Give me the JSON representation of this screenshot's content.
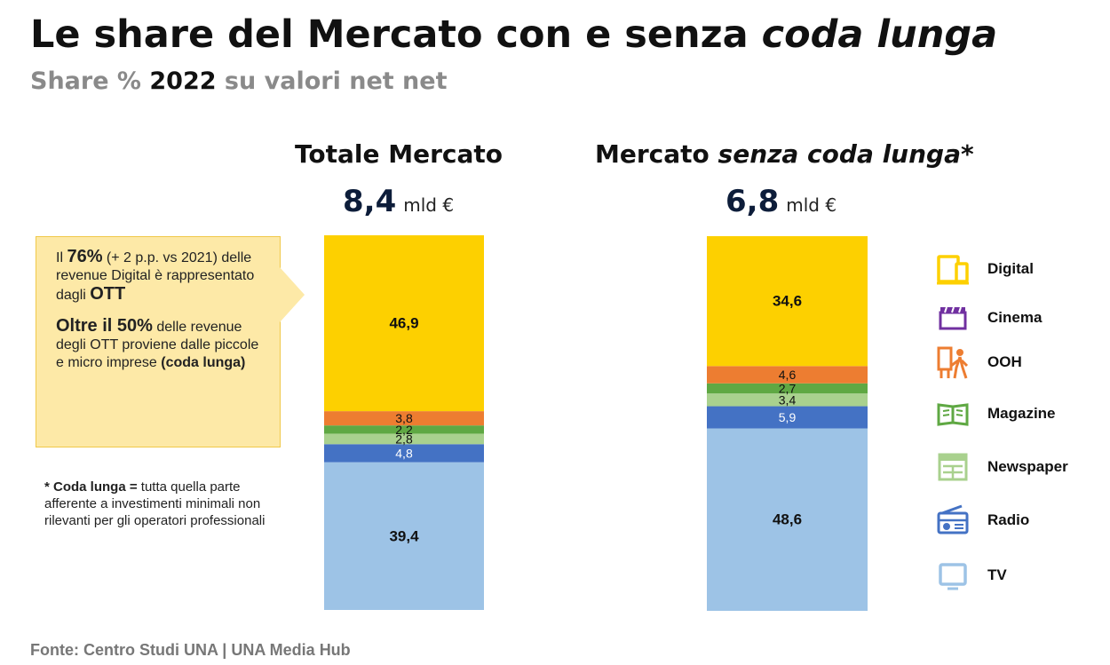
{
  "header": {
    "title_main": "Le share del Mercato con e senza ",
    "title_italic": "coda lunga",
    "subtitle_pre": "Share % ",
    "subtitle_year": "2022",
    "subtitle_post": " su valori net net"
  },
  "colors": {
    "Digital": "#fdd000",
    "Cinema": "#7030a0",
    "OOH": "#ed7d31",
    "Magazine": "#5fa843",
    "Newspaper": "#a9d18e",
    "Radio": "#4472c4",
    "TV": "#9dc3e6"
  },
  "callout": {
    "p1_a": "Il ",
    "p1_b": "76%",
    "p1_c": " (+ 2 p.p. vs 2021) delle revenue Digital è rappresentato dagli ",
    "p1_d": "OTT",
    "p2_a": "Oltre il 50%",
    "p2_b": " delle revenue degli OTT proviene dalle piccole e micro imprese ",
    "p2_c": "(coda lunga)"
  },
  "footnote": {
    "label": "* Coda lunga =",
    "text": " tutta quella parte afferente a investimenti minimali non rilevanti per gli operatori professionali"
  },
  "source": "Fonte: Centro Studi UNA | UNA Media Hub",
  "chart_data": [
    {
      "type": "bar",
      "stacked": true,
      "title": "Totale Mercato",
      "total_value": "8,4",
      "total_unit": "mld €",
      "ylim": [
        0,
        100
      ],
      "series": [
        {
          "name": "TV",
          "value": 39.4,
          "label": "39,4"
        },
        {
          "name": "Radio",
          "value": 4.8,
          "label": "4,8"
        },
        {
          "name": "Newspaper",
          "value": 2.8,
          "label": "2,8"
        },
        {
          "name": "Magazine",
          "value": 2.2,
          "label": "2,2"
        },
        {
          "name": "OOH",
          "value": 3.8,
          "label": "3,8"
        },
        {
          "name": "Digital",
          "value": 46.9,
          "label": "46,9"
        }
      ]
    },
    {
      "type": "bar",
      "stacked": true,
      "title_main": "Mercato ",
      "title_italic": "senza coda lunga*",
      "total_value": "6,8",
      "total_unit": "mld €",
      "ylim": [
        0,
        100
      ],
      "series": [
        {
          "name": "TV",
          "value": 48.6,
          "label": "48,6"
        },
        {
          "name": "Radio",
          "value": 5.9,
          "label": "5,9"
        },
        {
          "name": "Newspaper",
          "value": 3.4,
          "label": "3,4"
        },
        {
          "name": "Magazine",
          "value": 2.7,
          "label": "2,7"
        },
        {
          "name": "OOH",
          "value": 4.6,
          "label": "4,6"
        },
        {
          "name": "Digital",
          "value": 34.6,
          "label": "34,6"
        }
      ]
    }
  ],
  "legend": [
    {
      "label": "Digital",
      "icon": "tablet-phone-icon"
    },
    {
      "label": "Cinema",
      "icon": "clapperboard-icon"
    },
    {
      "label": "OOH",
      "icon": "billboard-person-icon"
    },
    {
      "label": "Magazine",
      "icon": "open-book-icon"
    },
    {
      "label": "Newspaper",
      "icon": "newspaper-icon"
    },
    {
      "label": "Radio",
      "icon": "radio-icon"
    },
    {
      "label": "TV",
      "icon": "tv-icon"
    }
  ]
}
